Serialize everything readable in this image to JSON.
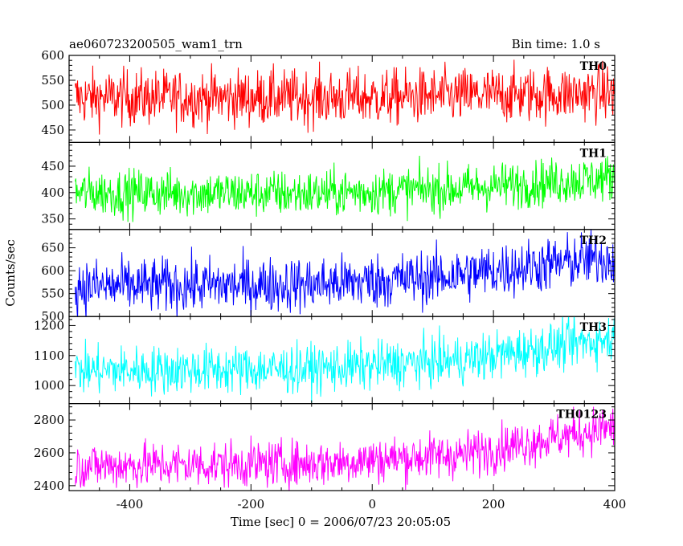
{
  "chart_data": {
    "type": "line",
    "title": "ae060723200505_wam1_trn",
    "bin_time_label": "Bin time: 1.0 s",
    "xlabel": "Time [sec] 0 = 2006/07/23 20:05:05",
    "ylabel": "Counts/sec",
    "xlim": [
      -500,
      400
    ],
    "x_ticks": [
      -400,
      -200,
      0,
      200,
      400
    ],
    "panels": [
      {
        "name": "TH0",
        "color": "#ff0000",
        "ylim": [
          425,
          600
        ],
        "y_ticks": [
          450,
          500,
          550,
          600
        ],
        "trend": [
          [
            -500,
            515
          ],
          [
            0,
            515
          ],
          [
            400,
            525
          ]
        ],
        "noise": 28
      },
      {
        "name": "TH1",
        "color": "#00ff00",
        "ylim": [
          330,
          495
        ],
        "y_ticks": [
          350,
          400,
          450
        ],
        "trend": [
          [
            -500,
            400
          ],
          [
            -100,
            398
          ],
          [
            150,
            408
          ],
          [
            400,
            428
          ]
        ],
        "noise": 22
      },
      {
        "name": "TH2",
        "color": "#0000ff",
        "ylim": [
          500,
          690
        ],
        "y_ticks": [
          500,
          550,
          600,
          650
        ],
        "trend": [
          [
            -500,
            565
          ],
          [
            -100,
            570
          ],
          [
            100,
            585
          ],
          [
            400,
            630
          ]
        ],
        "noise": 30
      },
      {
        "name": "TH3",
        "color": "#00ffff",
        "ylim": [
          940,
          1230
        ],
        "y_ticks": [
          1000,
          1100,
          1200
        ],
        "trend": [
          [
            -500,
            1050
          ],
          [
            -100,
            1055
          ],
          [
            150,
            1085
          ],
          [
            400,
            1160
          ]
        ],
        "noise": 40
      },
      {
        "name": "TH0123",
        "color": "#ff00ff",
        "ylim": [
          2370,
          2900
        ],
        "y_ticks": [
          2400,
          2600,
          2800
        ],
        "trend": [
          [
            -500,
            2520
          ],
          [
            -100,
            2535
          ],
          [
            150,
            2590
          ],
          [
            400,
            2760
          ]
        ],
        "noise": 70
      }
    ]
  }
}
